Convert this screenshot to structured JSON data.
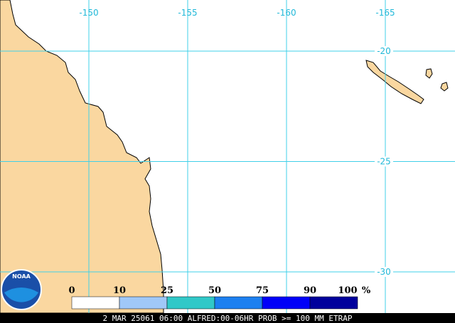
{
  "map": {
    "lon_lines": [
      -150,
      -155,
      -160,
      -165
    ],
    "lat_lines": [
      -20,
      -25,
      -30
    ],
    "legend": {
      "bins": [
        0,
        10,
        25,
        50,
        75,
        90,
        100
      ],
      "unit": "%",
      "colors": [
        "#ffffff",
        "#a0c8f8",
        "#30c8c8",
        "#1c80f0",
        "#0000f8",
        "#00009c"
      ]
    },
    "logo": "NOAA",
    "footer": "2 MAR 25061 06:00 ALFRED:00-06HR PROB >= 100 MM ETRAP"
  }
}
